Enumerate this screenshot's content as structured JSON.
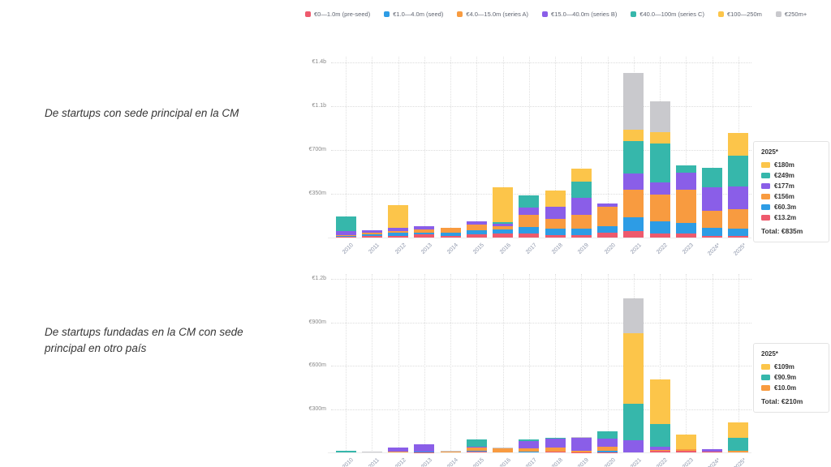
{
  "legend": {
    "items": [
      {
        "key": "pre_seed",
        "label": "€0—1.0m (pre-seed)",
        "color": "#ee5a6d"
      },
      {
        "key": "seed",
        "label": "€1.0—4.0m (seed)",
        "color": "#2d9ce5"
      },
      {
        "key": "series_a",
        "label": "€4.0—15.0m (series A)",
        "color": "#f89b40"
      },
      {
        "key": "series_b",
        "label": "€15.0—40.0m (series B)",
        "color": "#8a5ee8"
      },
      {
        "key": "series_c",
        "label": "€40.0—100m (series C)",
        "color": "#36b7ab"
      },
      {
        "key": "large",
        "label": "€100—250m",
        "color": "#fcc54a"
      },
      {
        "key": "mega",
        "label": "€250m+",
        "color": "#c9c9cd"
      }
    ]
  },
  "chart_data": [
    {
      "type": "bar",
      "stacked": true,
      "title": "De startups con sede principal en la CM",
      "unit": "€m",
      "grid": "dotted",
      "legend_position": "top-shared",
      "categories": [
        "2010",
        "2011",
        "2012",
        "2013",
        "2014",
        "2015",
        "2016",
        "2017",
        "2018",
        "2019",
        "2020",
        "2021",
        "2022",
        "2023",
        "2024*",
        "2025*"
      ],
      "series": [
        {
          "name": "€0—1.0m (pre-seed)",
          "key": "pre_seed",
          "color": "#ee5a6d",
          "values": [
            4,
            12,
            15,
            24,
            15,
            25,
            30,
            30,
            20,
            20,
            37,
            50,
            30,
            30,
            13,
            13.2
          ]
        },
        {
          "name": "€1.0—4.0m (seed)",
          "key": "seed",
          "color": "#2d9ce5",
          "values": [
            8,
            12,
            25,
            17,
            22,
            32,
            33,
            55,
            50,
            50,
            55,
            115,
            100,
            87,
            65,
            60.3
          ]
        },
        {
          "name": "€4.0—15.0m (series A)",
          "key": "series_a",
          "color": "#f89b40",
          "values": [
            10,
            15,
            15,
            22,
            42,
            45,
            28,
            94,
            81,
            113,
            157,
            220,
            215,
            266,
            137,
            156
          ]
        },
        {
          "name": "€15.0—40.0m (series B)",
          "key": "series_b",
          "color": "#8a5ee8",
          "values": [
            30,
            20,
            22,
            26,
            0,
            25,
            18,
            59,
            98,
            135,
            26,
            125,
            95,
            137,
            190,
            177
          ]
        },
        {
          "name": "€40.0—100m (series C)",
          "key": "series_c",
          "color": "#36b7ab",
          "values": [
            115,
            0,
            0,
            0,
            0,
            0,
            13,
            98,
            0,
            131,
            0,
            260,
            315,
            59,
            153,
            249
          ]
        },
        {
          "name": "€100—250m",
          "key": "large",
          "color": "#fcc54a",
          "values": [
            0,
            0,
            180,
            0,
            0,
            0,
            280,
            0,
            127,
            100,
            0,
            95,
            85,
            0,
            0,
            180
          ]
        },
        {
          "name": "€250m+",
          "key": "mega",
          "color": "#c9c9cd",
          "values": [
            0,
            0,
            0,
            0,
            0,
            0,
            0,
            0,
            0,
            0,
            0,
            450,
            250,
            0,
            0,
            0
          ]
        }
      ],
      "yticks": [
        {
          "label": "€350m",
          "value": 350
        },
        {
          "label": "€700m",
          "value": 700
        },
        {
          "label": "€1.1b",
          "value": 1050
        },
        {
          "label": "€1.4b",
          "value": 1400
        }
      ],
      "ylim": [
        0,
        1450
      ],
      "panel": {
        "title": "2025*",
        "rows": [
          {
            "color": "#fcc54a",
            "label": "€180m"
          },
          {
            "color": "#36b7ab",
            "label": "€249m"
          },
          {
            "color": "#8a5ee8",
            "label": "€177m"
          },
          {
            "color": "#f89b40",
            "label": "€156m"
          },
          {
            "color": "#2d9ce5",
            "label": "€60.3m"
          },
          {
            "color": "#ee5a6d",
            "label": "€13.2m"
          }
        ],
        "total": "Total: €835m"
      }
    },
    {
      "type": "bar",
      "stacked": true,
      "title": " De startups fundadas en la CM con sede principal en otro país",
      "unit": "€m",
      "grid": "dotted",
      "legend_position": "top-shared",
      "categories": [
        "2010",
        "2011",
        "2012",
        "2013",
        "2014",
        "2015",
        "2016",
        "2017",
        "2018",
        "2019",
        "2020",
        "2021",
        "2022",
        "2023",
        "2024*",
        "2025*"
      ],
      "series": [
        {
          "name": "€0—1.0m (pre-seed)",
          "key": "pre_seed",
          "color": "#ee5a6d",
          "values": [
            0,
            0,
            3,
            2,
            0,
            4,
            0,
            0,
            3,
            2,
            2,
            0,
            9,
            10,
            3,
            0
          ]
        },
        {
          "name": "€1.0—4.0m (seed)",
          "key": "seed",
          "color": "#2d9ce5",
          "values": [
            0,
            0,
            0,
            2,
            0,
            8,
            0,
            3,
            0,
            0,
            11,
            0,
            0,
            0,
            0,
            0
          ]
        },
        {
          "name": "€4.0—15.0m (series A)",
          "key": "series_a",
          "color": "#f89b40",
          "values": [
            0,
            0,
            4,
            0,
            5,
            22,
            30,
            24,
            28,
            11,
            24,
            0,
            9,
            15,
            0,
            10
          ]
        },
        {
          "name": "€15.0—40.0m (series B)",
          "key": "series_b",
          "color": "#8a5ee8",
          "values": [
            0,
            0,
            25,
            52,
            0,
            8,
            0,
            50,
            65,
            88,
            56,
            82,
            19,
            0,
            21,
            0
          ]
        },
        {
          "name": "€40.0—100m (series C)",
          "key": "series_c",
          "color": "#36b7ab",
          "values": [
            11,
            0,
            0,
            0,
            0,
            45,
            0,
            11,
            7,
            0,
            50,
            252,
            160,
            0,
            0,
            90.9
          ]
        },
        {
          "name": "€100—250m",
          "key": "large",
          "color": "#fcc54a",
          "values": [
            0,
            0,
            0,
            0,
            0,
            0,
            0,
            0,
            0,
            0,
            0,
            489,
            310,
            97,
            0,
            109
          ]
        },
        {
          "name": "€250m+",
          "key": "mega",
          "color": "#c9c9cd",
          "values": [
            0,
            7,
            0,
            0,
            6,
            0,
            4,
            0,
            0,
            4,
            0,
            243,
            0,
            0,
            0,
            0
          ]
        }
      ],
      "yticks": [
        {
          "label": "€300m",
          "value": 300
        },
        {
          "label": "€600m",
          "value": 600
        },
        {
          "label": "€900m",
          "value": 900
        },
        {
          "label": "€1.2b",
          "value": 1200
        }
      ],
      "ylim": [
        0,
        1235
      ],
      "panel": {
        "title": "2025*",
        "rows": [
          {
            "color": "#fcc54a",
            "label": "€109m"
          },
          {
            "color": "#36b7ab",
            "label": "€90.9m"
          },
          {
            "color": "#f89b40",
            "label": "€10.0m"
          }
        ],
        "total": "Total: €210m"
      }
    }
  ]
}
